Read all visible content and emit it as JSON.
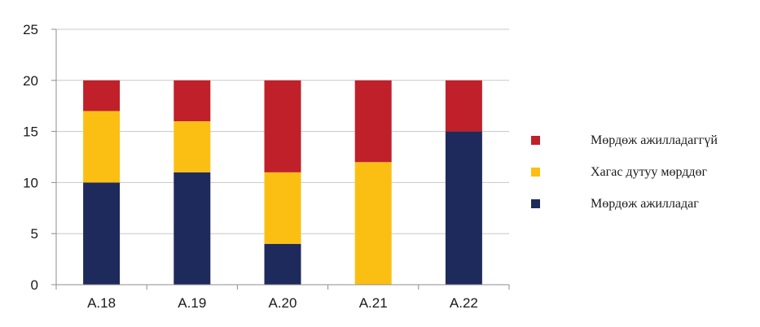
{
  "chart_data": {
    "type": "bar",
    "stacked": true,
    "categories": [
      "A.18",
      "A.19",
      "A.20",
      "A.21",
      "A.22"
    ],
    "series": [
      {
        "name": "Мөрдөж ажилладаг",
        "values": [
          10,
          11,
          4,
          0,
          15
        ],
        "color": "#1f2a5c"
      },
      {
        "name": "Хагас дутуу мөрддөг",
        "values": [
          7,
          5,
          7,
          12,
          0
        ],
        "color": "#fbbf14"
      },
      {
        "name": "Мөрдөж ажилладаггүй",
        "values": [
          3,
          4,
          9,
          8,
          5
        ],
        "color": "#c0202a"
      }
    ],
    "ylim": [
      0,
      25
    ],
    "yticks": [
      0,
      5,
      10,
      15,
      20,
      25
    ],
    "grid": true,
    "legend_position": "right",
    "legend_order": [
      2,
      1,
      0
    ]
  }
}
